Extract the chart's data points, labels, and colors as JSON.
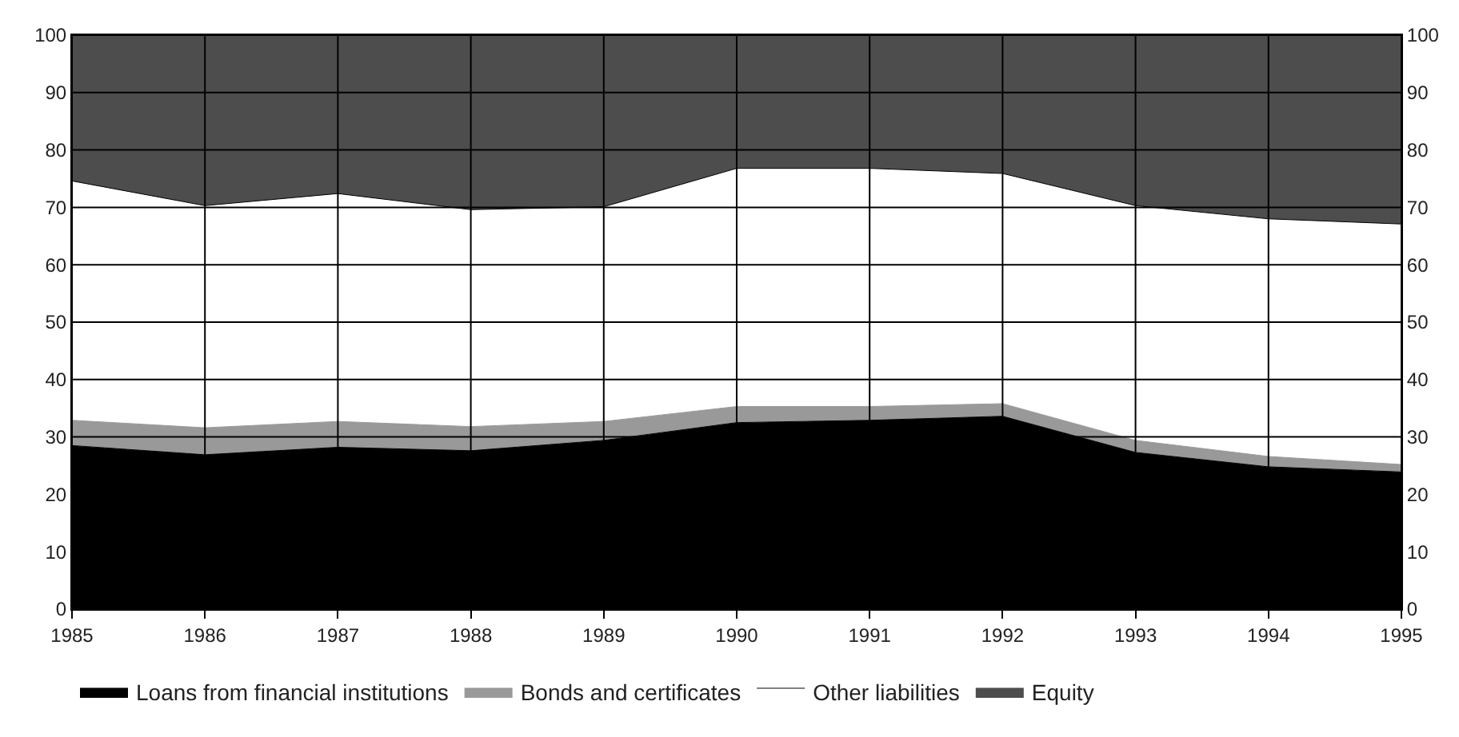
{
  "chart_data": {
    "type": "area",
    "stacked": true,
    "x": [
      1985,
      1986,
      1987,
      1988,
      1989,
      1990,
      1991,
      1992,
      1993,
      1994,
      1995
    ],
    "series": [
      {
        "name": "Loans from financial institutions",
        "color": "#000000",
        "values": [
          28.5,
          26.9,
          28.2,
          27.6,
          29.4,
          32.5,
          32.9,
          33.6,
          27.3,
          24.8,
          23.9
        ]
      },
      {
        "name": "Bonds and certificates",
        "color": "#999999",
        "values": [
          4.4,
          4.7,
          4.5,
          4.2,
          3.3,
          2.8,
          2.4,
          2.2,
          2.1,
          1.8,
          1.3
        ]
      },
      {
        "name": "Other liabilities",
        "color": "#ffffff",
        "values": [
          41.7,
          38.7,
          39.7,
          37.8,
          37.4,
          41.5,
          41.5,
          40.1,
          40.9,
          41.4,
          41.9
        ]
      },
      {
        "name": "Equity",
        "color": "#4d4d4d",
        "values": [
          25.4,
          29.7,
          27.6,
          30.4,
          29.9,
          23.2,
          23.2,
          24.1,
          29.7,
          32.0,
          32.9
        ]
      }
    ],
    "xlim": [
      1985,
      1995
    ],
    "xticks": [
      1985,
      1986,
      1987,
      1988,
      1989,
      1990,
      1991,
      1992,
      1993,
      1994,
      1995
    ],
    "ylim": [
      0,
      100
    ],
    "yticks": [
      0,
      10,
      20,
      30,
      40,
      50,
      60,
      70,
      80,
      90,
      100
    ],
    "y2lim": [
      0,
      100
    ],
    "y2ticks": [
      0,
      10,
      20,
      30,
      40,
      50,
      60,
      70,
      80,
      90,
      100
    ],
    "grid": true,
    "legend": "bottom"
  }
}
